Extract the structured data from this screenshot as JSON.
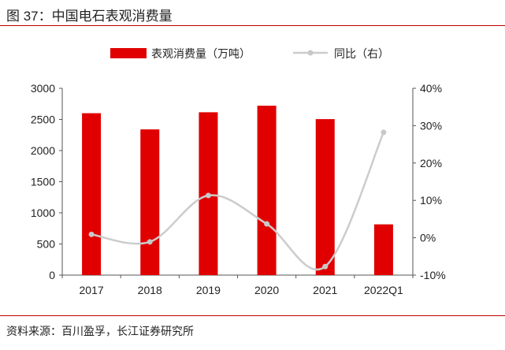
{
  "title": "图 37：中国电石表观消费量",
  "source": "资料来源：百川盈孚，长江证券研究所",
  "chart_data": {
    "type": "bar+line",
    "categories": [
      "2017",
      "2018",
      "2019",
      "2020",
      "2021",
      "2022Q1"
    ],
    "series": [
      {
        "name": "表观消费量（万吨）",
        "type": "bar",
        "axis": "left",
        "color": "#e00000",
        "values": [
          2600,
          2340,
          2615,
          2720,
          2505,
          815
        ]
      },
      {
        "name": "同比（右）",
        "type": "line",
        "axis": "right",
        "color": "#cccccc",
        "values": [
          0.9,
          -1.1,
          11.3,
          3.7,
          -7.7,
          28.2
        ]
      }
    ],
    "left_axis": {
      "range": [
        0,
        3000
      ],
      "ticks": [
        "0",
        "500",
        "1000",
        "1500",
        "2000",
        "2500",
        "3000"
      ]
    },
    "right_axis": {
      "range": [
        -10,
        40
      ],
      "ticks": [
        "-10%",
        "0%",
        "10%",
        "20%",
        "30%",
        "40%"
      ]
    },
    "legend": "top-center",
    "grid": false
  }
}
